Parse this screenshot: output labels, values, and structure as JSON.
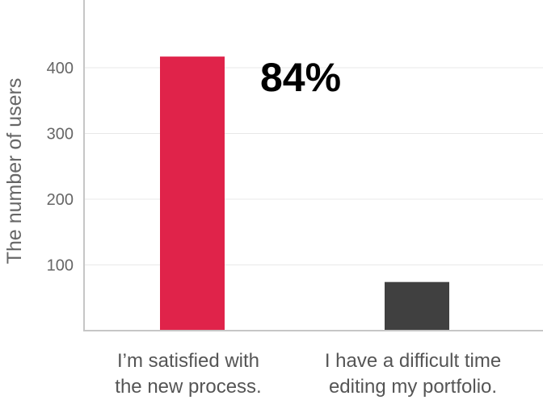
{
  "chart_data": {
    "type": "bar",
    "ylabel": "The number of users",
    "ylim": [
      0,
      500
    ],
    "yticks": [
      100,
      200,
      300,
      400
    ],
    "grid": true,
    "categories": [
      [
        "I’m satisfied with",
        "the new process."
      ],
      [
        "I have a difficult time",
        "editing my portfolio."
      ]
    ],
    "values": [
      417,
      74
    ],
    "bar_colors": [
      "#e0234a",
      "#404040"
    ],
    "annotation": "84%"
  }
}
